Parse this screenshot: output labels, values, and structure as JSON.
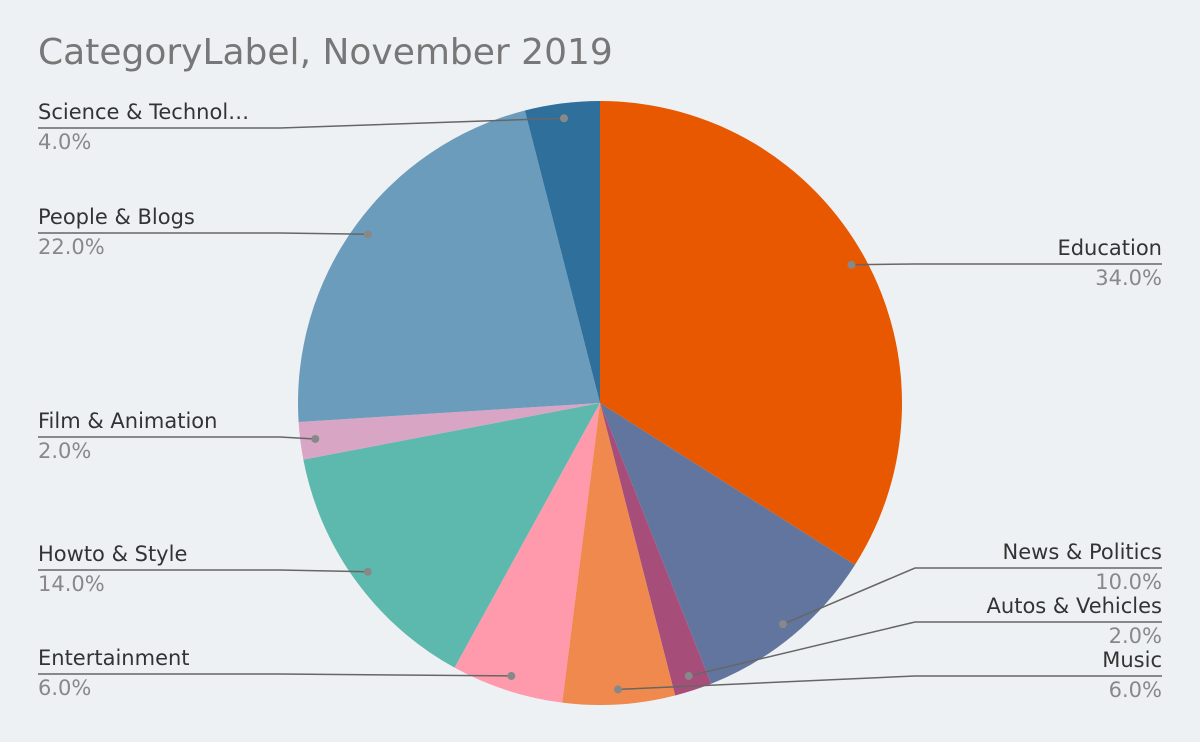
{
  "chart_data": {
    "type": "pie",
    "title": "CategoryLabel, November 2019",
    "categories": [
      "Education",
      "News & Politics",
      "Autos & Vehicles",
      "Music",
      "Entertainment",
      "Howto & Style",
      "Film & Animation",
      "People & Blogs",
      "Science & Technol…"
    ],
    "values": [
      34,
      10,
      2,
      6,
      6,
      14,
      2,
      22,
      4
    ],
    "value_labels": [
      "34.0%",
      "10.0%",
      "2.0%",
      "6.0%",
      "6.0%",
      "14.0%",
      "2.0%",
      "22.0%",
      "4.0%"
    ],
    "colors": [
      "#e85800",
      "#62759f",
      "#a64d79",
      "#f0894d",
      "#ff9aad",
      "#5db8ad",
      "#d8a5c4",
      "#6b9cbb",
      "#2e6f9b"
    ]
  }
}
